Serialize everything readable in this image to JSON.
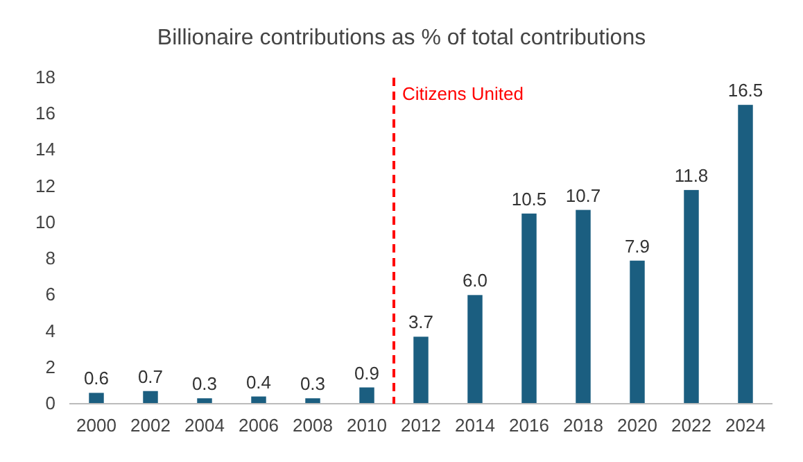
{
  "chart_data": {
    "type": "bar",
    "title": "Billionaire contributions as % of total contributions",
    "x": [
      2000,
      2002,
      2004,
      2006,
      2008,
      2010,
      2012,
      2014,
      2016,
      2018,
      2020,
      2022,
      2024
    ],
    "values": [
      0.6,
      0.7,
      0.3,
      0.4,
      0.3,
      0.9,
      3.7,
      6.0,
      10.5,
      10.7,
      7.9,
      11.8,
      16.5
    ],
    "value_labels": [
      "0.6",
      "0.7",
      "0.3",
      "0.4",
      "0.3",
      "0.9",
      "3.7",
      "6.0",
      "10.5",
      "10.7",
      "7.9",
      "11.8",
      "16.5"
    ],
    "color": "#1b5e80",
    "xlim": [
      1999,
      2025
    ],
    "xticks": [
      2000,
      2002,
      2004,
      2006,
      2008,
      2010,
      2012,
      2014,
      2016,
      2018,
      2020,
      2022,
      2024
    ],
    "ylim": [
      0,
      18
    ],
    "yticks": [
      0,
      2,
      4,
      6,
      8,
      10,
      12,
      14,
      16,
      18
    ],
    "ref_lines": [
      {
        "axis": "x",
        "value": 2011,
        "label": "Citizens United",
        "color": "#ff0000",
        "line_style": "dashed"
      }
    ],
    "grid": false
  }
}
